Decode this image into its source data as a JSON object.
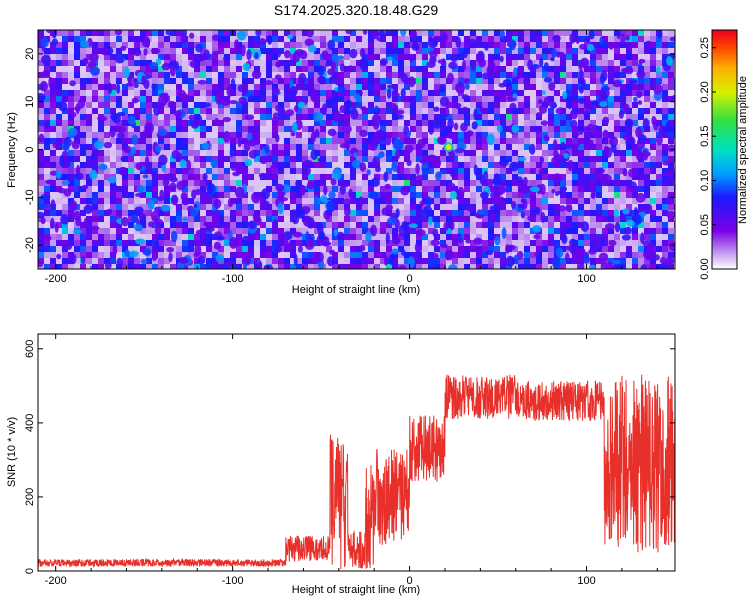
{
  "title": "S174.2025.320.18.48.G29",
  "chart_data": [
    {
      "type": "heatmap",
      "name": "spectrogram",
      "xlabel": "Height of straight line (km)",
      "ylabel": "Frequency (Hz)",
      "xlim": [
        -210,
        150
      ],
      "ylim": [
        -25,
        25
      ],
      "xticks": [
        -200,
        -100,
        0,
        100
      ],
      "yticks": [
        -20,
        -10,
        0,
        10,
        20
      ],
      "colorbar": {
        "label": "Normalized spectral amplitude",
        "range": [
          0,
          0.27
        ],
        "ticks": [
          0.0,
          0.05,
          0.1,
          0.15,
          0.2,
          0.25
        ],
        "tick_labels": [
          "0.00",
          "0.05",
          "0.10",
          "0.15",
          "0.20",
          "0.25"
        ]
      },
      "peak": {
        "x": 22,
        "y": 0.5,
        "value": 0.2
      }
    },
    {
      "type": "line",
      "name": "snr",
      "xlabel": "Height of straight line (km)",
      "ylabel": "SNR (10 * v/v)",
      "xlim": [
        -210,
        150
      ],
      "ylim": [
        0,
        640
      ],
      "xticks": [
        -200,
        -100,
        0,
        100
      ],
      "yticks": [
        0,
        200,
        400,
        600
      ],
      "color": "#e8302b",
      "segments": [
        {
          "x_range": [
            -210,
            -70
          ],
          "mean": 22,
          "noise": 10
        },
        {
          "x_range": [
            -70,
            -45
          ],
          "mean": 60,
          "noise": 35
        },
        {
          "x_range": [
            -45,
            -35
          ],
          "mean": 220,
          "noise": 150
        },
        {
          "x_range": [
            -35,
            -25
          ],
          "mean": 60,
          "noise": 50
        },
        {
          "x_range": [
            -25,
            0
          ],
          "mean": 200,
          "noise": 130
        },
        {
          "x_range": [
            0,
            20
          ],
          "mean": 330,
          "noise": 90
        },
        {
          "x_range": [
            20,
            60
          ],
          "mean": 470,
          "noise": 60
        },
        {
          "x_range": [
            60,
            110
          ],
          "mean": 460,
          "noise": 55
        },
        {
          "x_range": [
            110,
            150
          ],
          "mean": 300,
          "noise": 230
        }
      ]
    }
  ]
}
